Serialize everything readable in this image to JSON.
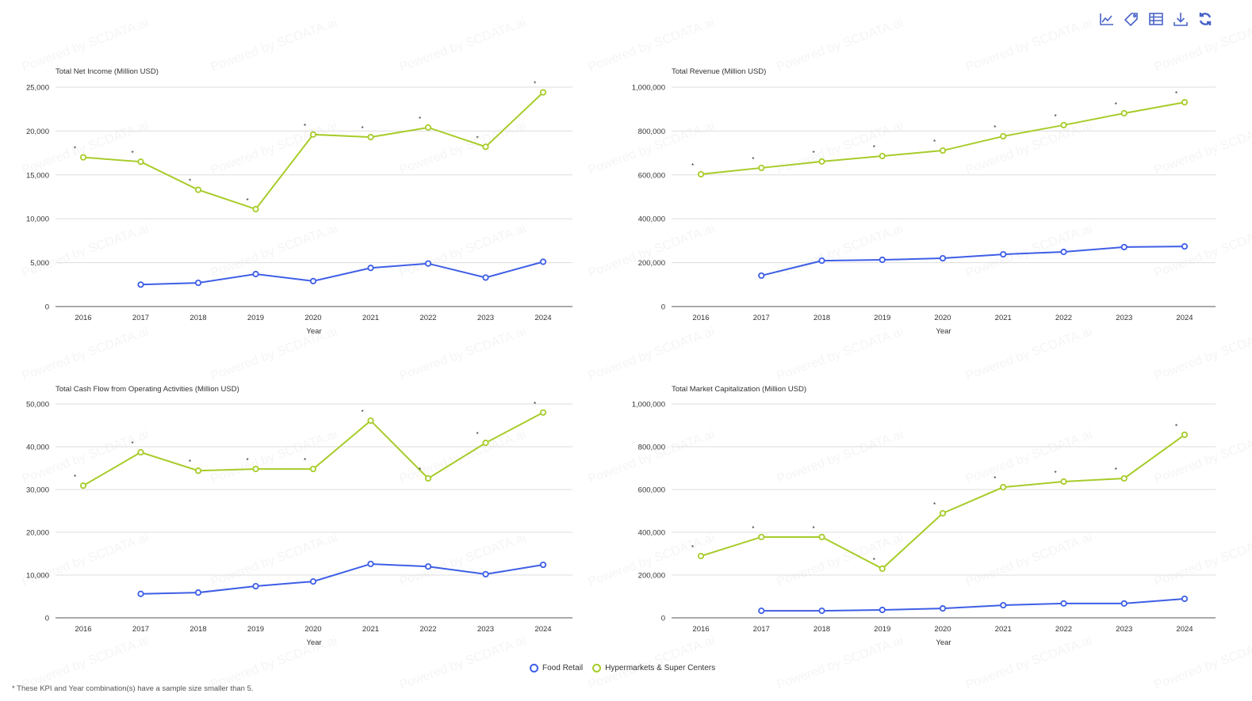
{
  "toolbar": {
    "icons": [
      "line-chart-icon",
      "tag-icon",
      "table-icon",
      "download-icon",
      "refresh-icon"
    ]
  },
  "watermark": "Powered by SCDATA.ai",
  "colors": {
    "food_retail": "#3e5ee6",
    "hypermarkets": "#a7cc2a"
  },
  "legend": [
    {
      "name": "Food Retail"
    },
    {
      "name": "Hypermarkets & Super Centers"
    }
  ],
  "footnote": "* These KPI and Year combination(s) have a sample size smaller than 5.",
  "chart_data": [
    {
      "type": "line",
      "title": "Total Net Income (Million USD)",
      "xlabel": "Year",
      "ylabel": "",
      "categories": [
        "2016",
        "2017",
        "2018",
        "2019",
        "2020",
        "2021",
        "2022",
        "2023",
        "2024"
      ],
      "ylim": [
        0,
        25000
      ],
      "ytick_step": 5000,
      "yticks": [
        "0",
        "5,000",
        "10,000",
        "15,000",
        "20,000",
        "25,000"
      ],
      "series": [
        {
          "name": "Food Retail",
          "values": [
            null,
            2500,
            2700,
            3700,
            2900,
            4400,
            4900,
            3300,
            5100
          ]
        },
        {
          "name": "Hypermarkets & Super Centers",
          "values": [
            17000,
            16500,
            13300,
            11100,
            19600,
            19300,
            20400,
            18200,
            24400
          ],
          "annotation": "*"
        }
      ]
    },
    {
      "type": "line",
      "title": "Total Revenue (Million USD)",
      "xlabel": "Year",
      "ylabel": "",
      "categories": [
        "2016",
        "2017",
        "2018",
        "2019",
        "2020",
        "2021",
        "2022",
        "2023",
        "2024"
      ],
      "ylim": [
        0,
        1000000
      ],
      "ytick_step": 200000,
      "yticks": [
        "0",
        "200,000",
        "400,000",
        "600,000",
        "800,000",
        "1,000,000"
      ],
      "series": [
        {
          "name": "Food Retail",
          "values": [
            null,
            141000,
            209000,
            213000,
            220000,
            238000,
            249000,
            271000,
            274000
          ]
        },
        {
          "name": "Hypermarkets & Super Centers",
          "values": [
            603000,
            632000,
            661000,
            686000,
            711000,
            776000,
            827000,
            881000,
            931000
          ],
          "annotation": "*"
        }
      ]
    },
    {
      "type": "line",
      "title": "Total Cash Flow from Operating Activities (Million USD)",
      "xlabel": "Year",
      "ylabel": "",
      "categories": [
        "2016",
        "2017",
        "2018",
        "2019",
        "2020",
        "2021",
        "2022",
        "2023",
        "2024"
      ],
      "ylim": [
        0,
        50000
      ],
      "ytick_step": 10000,
      "yticks": [
        "0",
        "10,000",
        "20,000",
        "30,000",
        "40,000",
        "50,000"
      ],
      "series": [
        {
          "name": "Food Retail",
          "values": [
            null,
            5600,
            5900,
            7400,
            8500,
            12600,
            12000,
            10200,
            12400
          ]
        },
        {
          "name": "Hypermarkets & Super Centers",
          "values": [
            30900,
            38700,
            34400,
            34800,
            34800,
            46100,
            32600,
            40900,
            48000
          ],
          "annotation": "*"
        }
      ]
    },
    {
      "type": "line",
      "title": "Total Market Capitalization (Million USD)",
      "xlabel": "Year",
      "ylabel": "",
      "categories": [
        "2016",
        "2017",
        "2018",
        "2019",
        "2020",
        "2021",
        "2022",
        "2023",
        "2024"
      ],
      "ylim": [
        0,
        1000000
      ],
      "ytick_step": 200000,
      "yticks": [
        "0",
        "200,000",
        "400,000",
        "600,000",
        "800,000",
        "1,000,000"
      ],
      "series": [
        {
          "name": "Food Retail",
          "values": [
            null,
            33000,
            33000,
            37000,
            44000,
            59000,
            67000,
            67000,
            89000
          ]
        },
        {
          "name": "Hypermarkets & Super Centers",
          "values": [
            289000,
            378000,
            378000,
            230000,
            489000,
            611000,
            637000,
            652000,
            856000
          ],
          "annotation": "*"
        }
      ]
    }
  ]
}
